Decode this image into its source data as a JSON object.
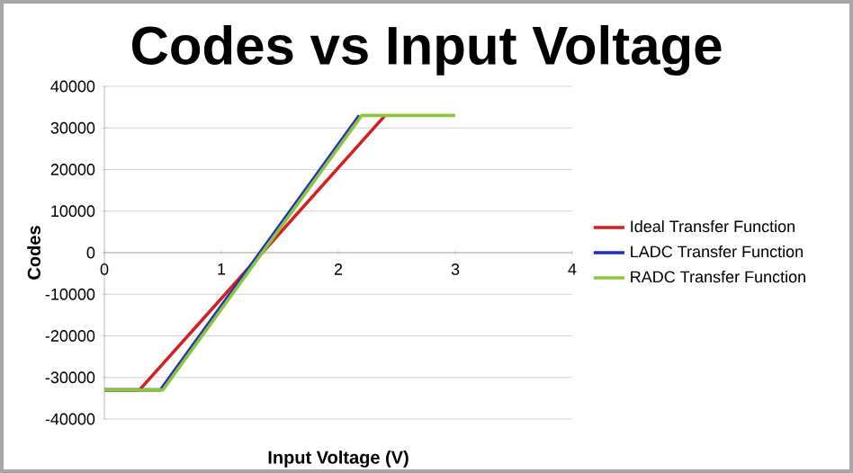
{
  "chart_data": {
    "type": "line",
    "title": "Codes vs Input Voltage",
    "xlabel": "Input Voltage (V)",
    "ylabel": "Codes",
    "xlim": [
      0,
      4
    ],
    "xticks": [
      0,
      1,
      2,
      3,
      4
    ],
    "ylim": [
      -40000,
      40000
    ],
    "yticks": [
      -40000,
      -30000,
      -20000,
      -10000,
      0,
      10000,
      20000,
      30000,
      40000
    ],
    "grid": "y",
    "legend": "right",
    "marker": "none",
    "line_style": "solid",
    "series": [
      {
        "name": "Ideal Transfer Function",
        "color": "#d42020",
        "x": [
          0,
          0.3,
          2.4
        ],
        "values": [
          -33000,
          -33000,
          33000
        ]
      },
      {
        "name": "LADC Transfer Function",
        "color": "#1c2fc4",
        "x": [
          0,
          0.48,
          2.18
        ],
        "values": [
          -33000,
          -33000,
          33000
        ]
      },
      {
        "name": "RADC Transfer Function",
        "color": "#8cc43c",
        "x": [
          0,
          0.5,
          2.2,
          3
        ],
        "values": [
          -33000,
          -33000,
          33000,
          33000
        ]
      }
    ]
  }
}
